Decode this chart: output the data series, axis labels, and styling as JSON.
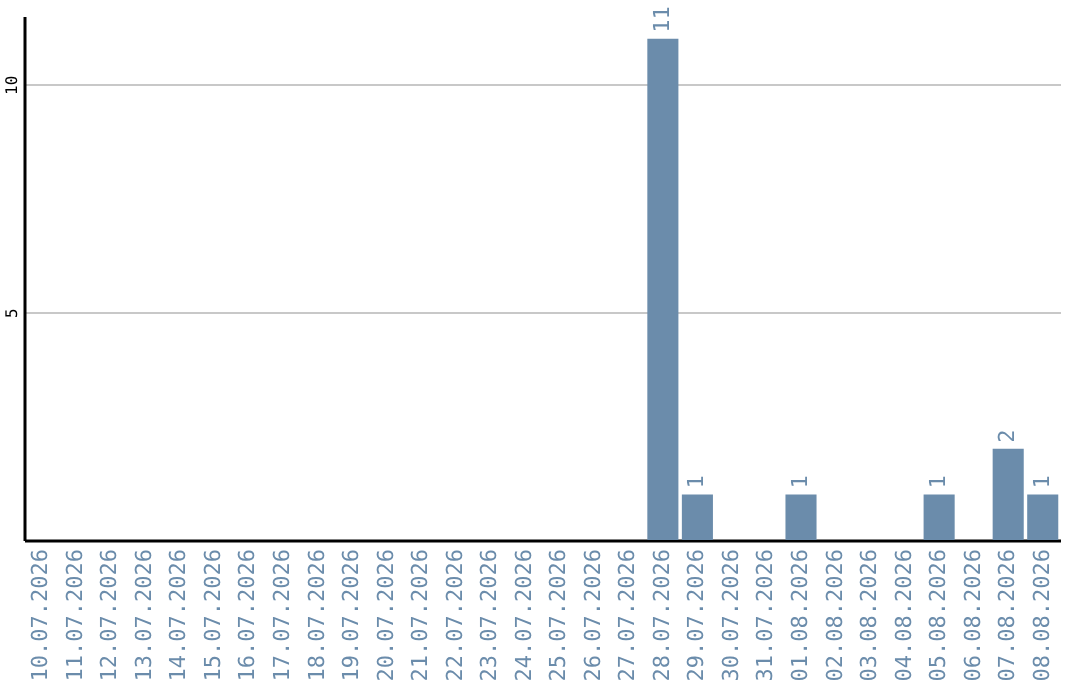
{
  "chart_data": {
    "type": "bar",
    "categories": [
      "10.07.2026",
      "11.07.2026",
      "12.07.2026",
      "13.07.2026",
      "14.07.2026",
      "15.07.2026",
      "16.07.2026",
      "17.07.2026",
      "18.07.2026",
      "19.07.2026",
      "20.07.2026",
      "21.07.2026",
      "22.07.2026",
      "23.07.2026",
      "24.07.2026",
      "25.07.2026",
      "26.07.2026",
      "27.07.2026",
      "28.07.2026",
      "29.07.2026",
      "30.07.2026",
      "31.07.2026",
      "01.08.2026",
      "02.08.2026",
      "03.08.2026",
      "04.08.2026",
      "05.08.2026",
      "06.08.2026",
      "07.08.2026",
      "08.08.2026"
    ],
    "values": [
      0,
      0,
      0,
      0,
      0,
      0,
      0,
      0,
      0,
      0,
      0,
      0,
      0,
      0,
      0,
      0,
      0,
      0,
      11,
      1,
      0,
      0,
      1,
      0,
      0,
      0,
      1,
      0,
      2,
      1
    ],
    "value_labels": [
      null,
      null,
      null,
      null,
      null,
      null,
      null,
      null,
      null,
      null,
      null,
      null,
      null,
      null,
      null,
      null,
      null,
      null,
      "11",
      "1",
      null,
      null,
      "1",
      null,
      null,
      null,
      "1",
      null,
      "2",
      "1"
    ],
    "color": "#6b8cab",
    "ylim": [
      0,
      11.5
    ],
    "yticks": [
      5,
      10
    ],
    "grid": "y"
  }
}
